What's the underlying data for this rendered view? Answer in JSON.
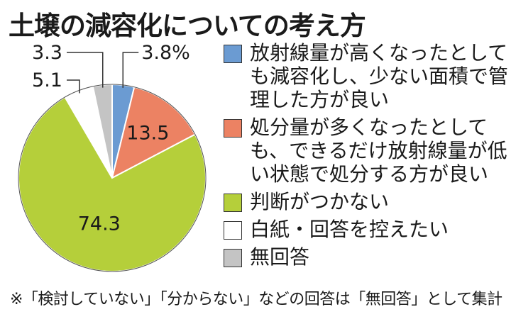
{
  "title": "土壌の減容化についての考え方",
  "chart_data": {
    "type": "pie",
    "title": "土壌の減容化についての考え方",
    "start": "12 o'clock",
    "direction": "clockwise",
    "slices": [
      {
        "label": "放射線量が高くなったとしても減容化し、少ない面積で管理した方が良い",
        "value": 3.8,
        "value_label": "3.8%",
        "color": "#6b9bd2"
      },
      {
        "label": "処分量が多くなったとしても、できるだけ放射線量が低い状態で処分する方が良い",
        "value": 13.5,
        "value_label": "13.5",
        "color": "#ec8263"
      },
      {
        "label": "判断がつかない",
        "value": 74.3,
        "value_label": "74.3",
        "color": "#b5cf3a"
      },
      {
        "label": "白紙・回答を控えたい",
        "value": 5.1,
        "value_label": "5.1",
        "color": "#ffffff"
      },
      {
        "label": "無回答",
        "value": 3.3,
        "value_label": "3.3",
        "color": "#c4c4c4"
      }
    ]
  },
  "footnote": "※「検討していない」「分からない」などの回答は「無回答」として集計"
}
